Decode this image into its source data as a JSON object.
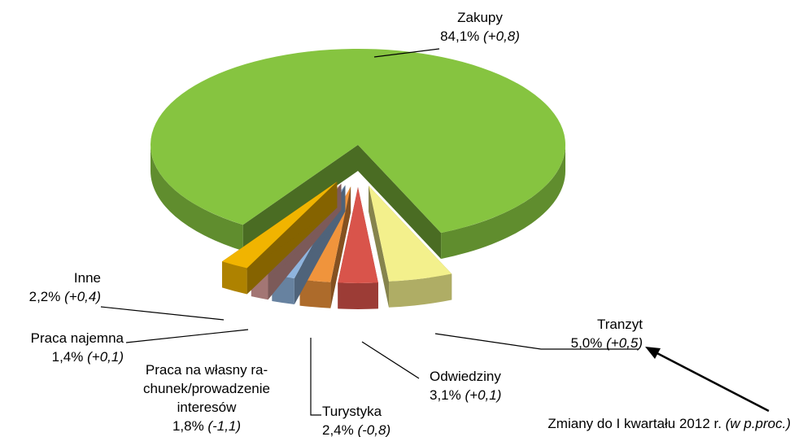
{
  "chart_data": {
    "type": "pie",
    "categories": [
      "Zakupy",
      "Tranzyt",
      "Odwiedziny",
      "Turystyka",
      "Praca na własny ra-\nchunek/prowadzenie\ninteresów",
      "Praca najemna",
      "Inne"
    ],
    "values": [
      84.1,
      5.0,
      3.1,
      2.4,
      1.8,
      1.4,
      2.2
    ],
    "value_labels": [
      "84,1%",
      "5,0%",
      "3,1%",
      "2,4%",
      "1,8%",
      "1,4%",
      "2,2%"
    ],
    "changes": [
      "(+0,8)",
      "(+0,5)",
      "(+0,1)",
      "(-0,8)",
      "(-1,1)",
      "(+0,1)",
      "(+0,4)"
    ],
    "colors": [
      "#86c440",
      "#f3f08c",
      "#d9544b",
      "#f0943c",
      "#8fb4de",
      "#e2a4a1",
      "#f1b400"
    ],
    "annotation": {
      "text": "Zmiany do I kwartału 2012 r.",
      "note": "(w p.proc.)"
    }
  }
}
